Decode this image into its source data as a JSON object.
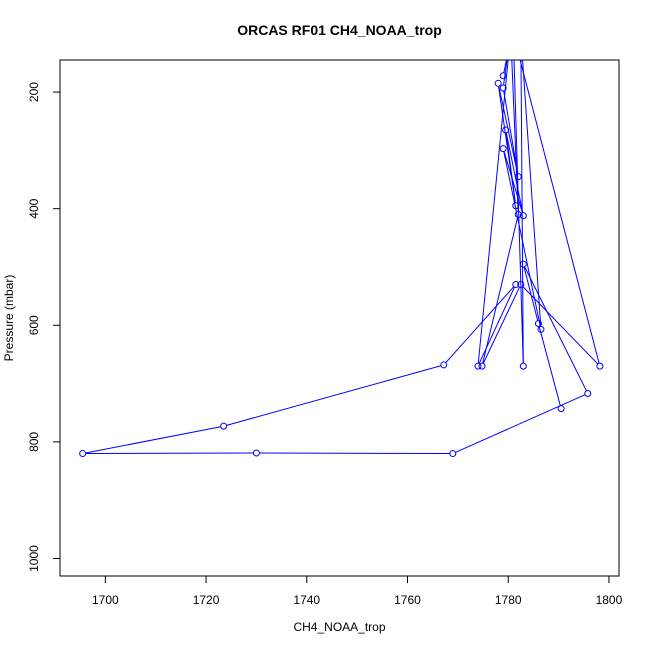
{
  "chart_data": {
    "type": "line",
    "title": "ORCAS RF01 CH4_NOAA_trop",
    "xlabel": "CH4_NOAA_trop",
    "ylabel": "Pressure (mbar)",
    "xlim": [
      1691,
      1802
    ],
    "ylim": [
      1030,
      145
    ],
    "y_reversed": true,
    "xticks": [
      1700,
      1720,
      1740,
      1760,
      1780,
      1800
    ],
    "yticks": [
      200,
      400,
      600,
      800,
      1000
    ],
    "grid": false,
    "series_color": "#0000ff",
    "x": [
      1790.5,
      1786.0,
      1783.0,
      1795.8,
      1769.0,
      1730.0,
      1695.5,
      1723.5,
      1767.2,
      1781.5,
      1774.0,
      1780.5,
      1782.0,
      1774.8,
      1782.5,
      1798.2,
      1781.0,
      1783.0,
      1782.5,
      1786.5,
      1779.0,
      1783.0,
      1779.5,
      1781.5,
      1778.0,
      1782.0,
      1779.0,
      1780.0,
      1779.0
    ],
    "y": [
      743,
      597,
      495,
      717,
      820,
      819,
      820,
      773,
      668,
      530,
      670,
      100,
      410,
      670,
      530,
      670,
      100,
      670,
      100,
      607,
      297,
      412,
      265,
      395,
      185,
      345,
      193,
      130,
      172
    ]
  }
}
